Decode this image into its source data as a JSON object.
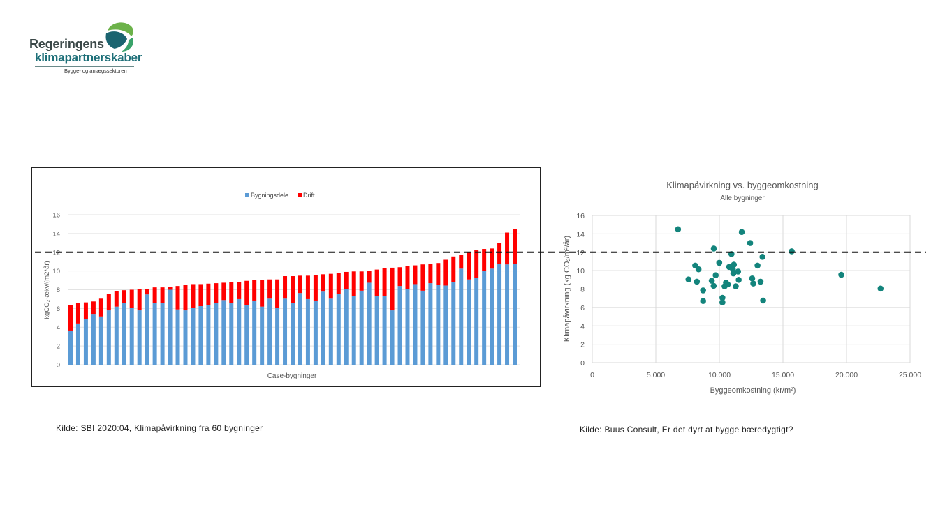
{
  "logo": {
    "line1": "Regeringens",
    "line2": "klimapartnerskaber",
    "line3": "Bygge- og anlægssektoren"
  },
  "threshold": 12,
  "colors": {
    "blue": "#5b9bd5",
    "red": "#ff0000",
    "teal": "#13847c",
    "grid": "#d9d9d9"
  },
  "captions": {
    "left": "Kilde: SBI 2020:04, Klimapåvirkning fra 60 bygninger",
    "right": "Kilde: Buus Consult, Er det dyrt at bygge bæredygtigt?"
  },
  "chart_data": [
    {
      "type": "bar",
      "stacked": true,
      "title": "",
      "legend": [
        "Bygningsdele",
        "Drift"
      ],
      "legend_position": "top",
      "xlabel": "Case-bygninger",
      "ylabel": "kgCO₂-ækv/(m2*år)",
      "ylim": [
        0,
        16
      ],
      "yticks": [
        "0",
        "2",
        "4",
        "6",
        "8",
        "10",
        "12",
        "14",
        "16"
      ],
      "grid": true,
      "series": [
        {
          "name": "Bygningsdele",
          "values": [
            3.65,
            4.4,
            4.85,
            5.35,
            5.15,
            5.8,
            6.2,
            6.6,
            6.1,
            5.8,
            7.5,
            6.6,
            6.6,
            8.0,
            5.9,
            5.8,
            6.1,
            6.25,
            6.4,
            6.55,
            6.9,
            6.6,
            7.0,
            6.4,
            6.85,
            6.2,
            7.05,
            6.1,
            7.05,
            6.6,
            7.65,
            7.0,
            6.85,
            7.8,
            7.05,
            7.55,
            8.05,
            7.35,
            7.9,
            8.75,
            7.35,
            7.35,
            5.8,
            8.4,
            8.05,
            8.6,
            7.9,
            8.7,
            8.55,
            8.45,
            8.85,
            10.25,
            9.1,
            9.25,
            10.0,
            10.25,
            10.75,
            10.7,
            10.75
          ]
        },
        {
          "name": "Drift",
          "values": [
            2.75,
            2.15,
            1.8,
            1.4,
            1.9,
            1.75,
            1.65,
            1.35,
            1.9,
            2.25,
            0.55,
            1.65,
            1.65,
            0.3,
            2.5,
            2.75,
            2.5,
            2.35,
            2.25,
            2.15,
            1.85,
            2.25,
            1.85,
            2.55,
            2.2,
            2.85,
            2.05,
            3.0,
            2.4,
            2.85,
            1.85,
            2.5,
            2.7,
            1.85,
            2.65,
            2.25,
            1.85,
            2.6,
            2.05,
            1.25,
            2.8,
            2.95,
            4.55,
            2.0,
            2.45,
            2.0,
            2.8,
            2.05,
            2.3,
            2.75,
            2.7,
            1.45,
            2.9,
            3.0,
            2.35,
            2.15,
            2.2,
            3.4,
            3.7
          ]
        }
      ]
    },
    {
      "type": "scatter",
      "title": "Klimapåvirkning vs. byggeomkostning",
      "subtitle": "Alle bygninger",
      "xlabel": "Byggeomkostning (kr/m²)",
      "ylabel": "Klimapåvirkning (kg CO₂/m²/år)",
      "xlim": [
        0,
        25000
      ],
      "ylim": [
        0,
        16
      ],
      "xticks": [
        "0",
        "5.000",
        "10.000",
        "15.000",
        "20.000",
        "25.000"
      ],
      "yticks": [
        "0",
        "2",
        "4",
        "6",
        "8",
        "10",
        "12",
        "14",
        "16"
      ],
      "grid": true,
      "points": [
        [
          6750,
          14.5
        ],
        [
          11760,
          14.2
        ],
        [
          12420,
          13.0
        ],
        [
          9560,
          12.4
        ],
        [
          15690,
          12.1
        ],
        [
          10950,
          11.8
        ],
        [
          13390,
          11.5
        ],
        [
          8100,
          10.55
        ],
        [
          8360,
          10.15
        ],
        [
          9990,
          10.85
        ],
        [
          10770,
          10.4
        ],
        [
          11140,
          10.65
        ],
        [
          11050,
          10.2
        ],
        [
          11100,
          9.7
        ],
        [
          11470,
          9.9
        ],
        [
          13000,
          10.55
        ],
        [
          7570,
          9.05
        ],
        [
          8230,
          8.8
        ],
        [
          9400,
          8.9
        ],
        [
          9710,
          9.5
        ],
        [
          9550,
          8.35
        ],
        [
          10520,
          8.7
        ],
        [
          10410,
          8.3
        ],
        [
          10660,
          8.5
        ],
        [
          11290,
          8.3
        ],
        [
          11520,
          9.0
        ],
        [
          12580,
          9.15
        ],
        [
          12670,
          8.6
        ],
        [
          13240,
          8.8
        ],
        [
          8720,
          7.85
        ],
        [
          8720,
          6.7
        ],
        [
          10240,
          7.05
        ],
        [
          10240,
          6.55
        ],
        [
          13440,
          6.75
        ],
        [
          19590,
          9.55
        ],
        [
          22680,
          8.05
        ]
      ]
    }
  ]
}
